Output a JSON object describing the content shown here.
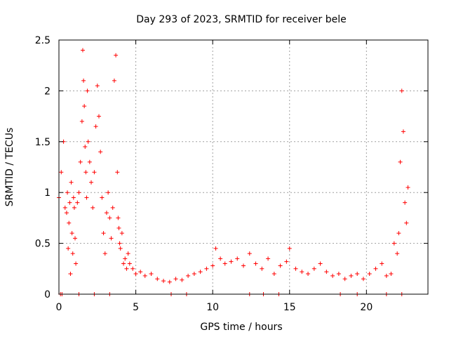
{
  "chart_data": {
    "type": "scatter",
    "title": "Day 293 of 2023, SRMTID for receiver bele",
    "xlabel": "GPS time / hours",
    "ylabel": "SRMTID / TECUs",
    "xlim": [
      0,
      24
    ],
    "ylim": [
      0,
      2.5
    ],
    "xticks": [
      0,
      5,
      10,
      15,
      20
    ],
    "xtick_labels": [
      "0",
      "5",
      "10",
      "15",
      "20"
    ],
    "yticks": [
      0,
      0.5,
      1,
      1.5,
      2,
      2.5
    ],
    "ytick_labels": [
      "0",
      "0.5",
      "1",
      "1.5",
      "2",
      "2.5"
    ],
    "grid": true,
    "marker": "+",
    "series": [
      {
        "name": "SRMTID",
        "color": "#ff0000",
        "x": [
          0.0,
          0.15,
          0.3,
          0.4,
          0.5,
          0.55,
          0.6,
          0.65,
          0.7,
          0.75,
          0.8,
          0.85,
          0.9,
          0.95,
          1.0,
          1.05,
          1.1,
          1.2,
          1.3,
          1.4,
          1.5,
          1.55,
          1.6,
          1.65,
          1.7,
          1.75,
          1.8,
          1.85,
          1.9,
          2.0,
          2.1,
          2.2,
          2.3,
          2.4,
          2.5,
          2.6,
          2.7,
          2.8,
          2.9,
          3.0,
          3.1,
          3.2,
          3.3,
          3.4,
          3.5,
          3.6,
          3.7,
          3.8,
          3.85,
          3.9,
          3.95,
          4.0,
          4.1,
          4.2,
          4.3,
          4.4,
          4.5,
          4.6,
          4.8,
          5.0,
          5.3,
          5.6,
          6.0,
          6.4,
          6.8,
          7.2,
          7.6,
          8.0,
          8.4,
          8.8,
          9.2,
          9.6,
          10.0,
          10.2,
          10.5,
          10.8,
          11.2,
          11.6,
          12.0,
          12.4,
          12.8,
          13.2,
          13.6,
          14.0,
          14.4,
          14.8,
          15.0,
          15.4,
          15.8,
          16.2,
          16.6,
          17.0,
          17.4,
          17.8,
          18.2,
          18.6,
          19.0,
          19.4,
          19.8,
          20.2,
          20.6,
          21.0,
          21.3,
          21.6,
          21.8,
          22.0,
          22.1,
          22.2,
          22.3,
          22.4,
          22.5,
          22.6,
          22.7
        ],
        "y": [
          0.95,
          1.2,
          1.5,
          0.85,
          0.8,
          1.0,
          0.45,
          0.7,
          0.9,
          0.2,
          1.1,
          0.6,
          0.4,
          0.95,
          0.85,
          0.55,
          0.3,
          0.9,
          1.0,
          1.3,
          1.7,
          2.4,
          2.1,
          1.85,
          1.45,
          1.2,
          0.95,
          2.0,
          1.5,
          1.3,
          1.1,
          0.85,
          1.2,
          1.65,
          2.05,
          1.75,
          1.4,
          0.95,
          0.6,
          0.4,
          0.8,
          1.0,
          0.75,
          0.55,
          0.85,
          2.1,
          2.35,
          1.2,
          0.75,
          0.65,
          0.5,
          0.45,
          0.6,
          0.3,
          0.35,
          0.25,
          0.4,
          0.3,
          0.25,
          0.2,
          0.22,
          0.18,
          0.2,
          0.15,
          0.13,
          0.12,
          0.15,
          0.14,
          0.18,
          0.2,
          0.22,
          0.25,
          0.28,
          0.45,
          0.35,
          0.3,
          0.32,
          0.35,
          0.28,
          0.4,
          0.3,
          0.25,
          0.35,
          0.2,
          0.28,
          0.32,
          0.45,
          0.25,
          0.22,
          0.2,
          0.25,
          0.3,
          0.22,
          0.18,
          0.2,
          0.15,
          0.18,
          0.2,
          0.15,
          0.2,
          0.25,
          0.3,
          0.18,
          0.2,
          0.5,
          0.4,
          0.6,
          1.3,
          2.0,
          1.6,
          0.9,
          0.7,
          1.05
        ]
      }
    ],
    "zero_x": [
      0.1,
      0.2,
      1.3,
      2.3,
      3.3,
      7.3,
      8.3,
      12.4,
      13.3,
      14.3,
      18.3,
      19.4,
      21.3,
      22.3
    ]
  }
}
